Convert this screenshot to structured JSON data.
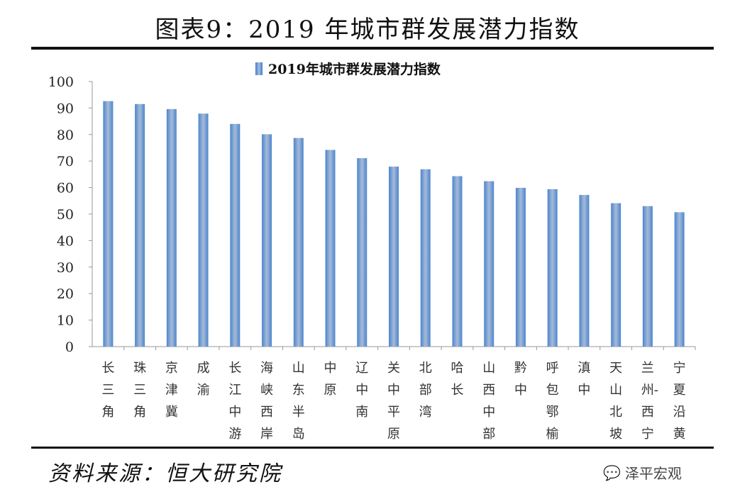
{
  "title": "图表9：2019 年城市群发展潜力指数",
  "source": "资料来源：恒大研究院",
  "watermark": "泽平宏观",
  "colors": {
    "bar": "#4a86cf",
    "bar_highlight": "#a7bad6"
  },
  "chart_data": {
    "type": "bar",
    "categories": [
      "长三角",
      "珠三角",
      "京津冀",
      "成渝",
      "长江中游",
      "海峡西岸",
      "山东半岛",
      "中原",
      "辽中南",
      "关中平原",
      "北部湾",
      "哈长",
      "山西中部",
      "黔中",
      "呼包鄂榆",
      "滇中",
      "天山北坡",
      "兰州-西宁",
      "宁夏沿黄"
    ],
    "series": [
      {
        "name": "2019年城市群发展潜力指数",
        "values": [
          92.6,
          91.5,
          89.6,
          87.9,
          84.0,
          80.1,
          78.7,
          74.2,
          71.1,
          67.9,
          66.9,
          64.3,
          62.4,
          59.9,
          59.4,
          57.2,
          54.1,
          53.0,
          50.7
        ]
      }
    ],
    "ylim": [
      0,
      100
    ],
    "yticks": [
      0,
      10,
      20,
      30,
      40,
      50,
      60,
      70,
      80,
      90,
      100
    ],
    "legend": "top",
    "grid": false
  }
}
